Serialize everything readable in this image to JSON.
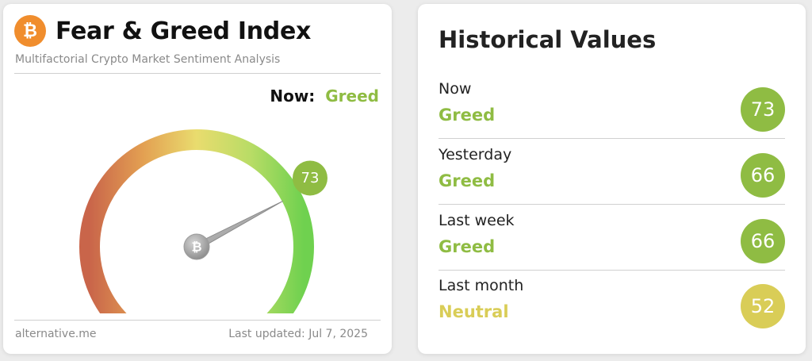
{
  "app": {
    "title": "Fear & Greed Index",
    "subtitle": "Multifactorial Crypto Market Sentiment Analysis",
    "logo_icon": "bitcoin-icon",
    "logo_symbol": "₿"
  },
  "now": {
    "label": "Now:",
    "classification": "Greed",
    "value": "73",
    "value_numeric": 73,
    "color": "#8fbc43"
  },
  "gauge": {
    "min": 0,
    "max": 100,
    "value": 73,
    "center_icon": "bitcoin-icon",
    "center_symbol": "₿"
  },
  "footer": {
    "source": "alternative.me",
    "updated": "Last updated: Jul 7, 2025"
  },
  "historical": {
    "title": "Historical Values",
    "rows": [
      {
        "label": "Now",
        "classification": "Greed",
        "value": "73",
        "color": "#8fbc43"
      },
      {
        "label": "Yesterday",
        "classification": "Greed",
        "value": "66",
        "color": "#8fbc43"
      },
      {
        "label": "Last week",
        "classification": "Greed",
        "value": "66",
        "color": "#8fbc43"
      },
      {
        "label": "Last month",
        "classification": "Neutral",
        "value": "52",
        "color": "#d9cd57"
      }
    ]
  }
}
